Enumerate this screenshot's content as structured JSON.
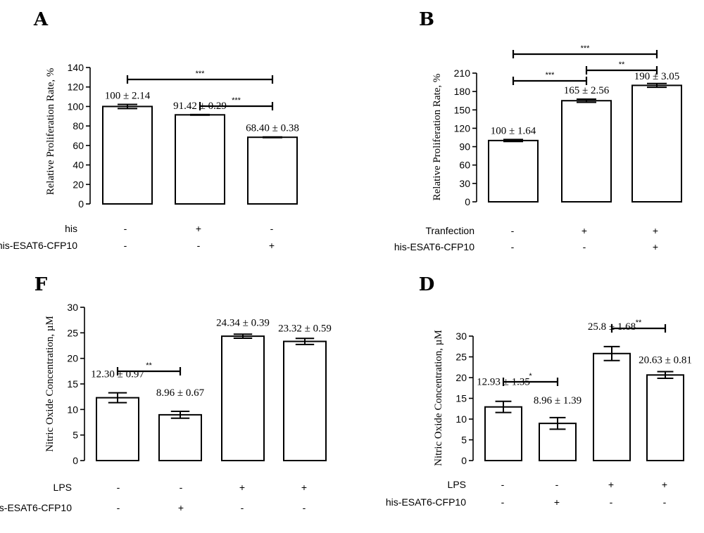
{
  "chart_data": [
    {
      "type": "bar",
      "panel": "A",
      "ylabel": "Relative Proliferation Rate, %",
      "ylim": [
        0,
        140
      ],
      "yticks": [
        0,
        20,
        40,
        60,
        80,
        100,
        120,
        140
      ],
      "values": [
        100,
        91.42,
        68.4
      ],
      "errors": [
        2.14,
        0.29,
        0.38
      ],
      "value_labels": [
        "100 ± 2.14",
        "91.42 ± 0.29",
        "68.40 ± 0.38"
      ],
      "conditions": [
        {
          "label": "his",
          "marks": [
            "-",
            "+",
            "-"
          ]
        },
        {
          "label": "his-ESAT6-CFP10",
          "marks": [
            "-",
            "-",
            "+"
          ]
        }
      ],
      "significance": [
        {
          "from": 0,
          "to": 2,
          "text": "***"
        },
        {
          "from": 1,
          "to": 2,
          "text": "***"
        }
      ]
    },
    {
      "type": "bar",
      "panel": "B",
      "ylabel": "Relative Proliferation Rate, %",
      "ylim": [
        0,
        210
      ],
      "yticks": [
        0,
        30,
        60,
        90,
        120,
        150,
        180,
        210
      ],
      "values": [
        100,
        165,
        190
      ],
      "errors": [
        1.64,
        2.56,
        3.05
      ],
      "value_labels": [
        "100 ± 1.64",
        "165 ± 2.56",
        "190 ± 3.05"
      ],
      "conditions": [
        {
          "label": "Tranfection",
          "marks": [
            "-",
            "+",
            "+"
          ]
        },
        {
          "label": "his-ESAT6-CFP10",
          "marks": [
            "-",
            "-",
            "+"
          ]
        }
      ],
      "significance": [
        {
          "from": 0,
          "to": 2,
          "text": "***"
        },
        {
          "from": 0,
          "to": 1,
          "text": "***"
        },
        {
          "from": 1,
          "to": 2,
          "text": "**"
        }
      ]
    },
    {
      "type": "bar",
      "panel": "F",
      "ylabel": "Nitric Oxide Concentration, µM",
      "ylim": [
        0,
        30
      ],
      "yticks": [
        0,
        5,
        10,
        15,
        20,
        25,
        30
      ],
      "values": [
        12.3,
        8.96,
        24.34,
        23.32
      ],
      "errors": [
        0.97,
        0.67,
        0.39,
        0.59
      ],
      "value_labels": [
        "12.30 ± 0.97",
        "8.96 ± 0.67",
        "24.34 ± 0.39",
        "23.32 ± 0.59"
      ],
      "conditions": [
        {
          "label": "LPS",
          "marks": [
            "-",
            "-",
            "+",
            "+"
          ]
        },
        {
          "label": "his-ESAT6-CFP10",
          "marks": [
            "-",
            "+",
            "-",
            "-"
          ]
        }
      ],
      "significance": [
        {
          "from": 0,
          "to": 1,
          "text": "**"
        }
      ]
    },
    {
      "type": "bar",
      "panel": "D",
      "ylabel": "Nitric Oxide Concentration, µM",
      "ylim": [
        0,
        30
      ],
      "yticks": [
        0,
        5,
        10,
        15,
        20,
        25,
        30
      ],
      "values": [
        12.93,
        8.96,
        25.8,
        20.63
      ],
      "errors": [
        1.35,
        1.39,
        1.68,
        0.81
      ],
      "value_labels": [
        "12.93 ± 1.35",
        "8.96 ± 1.39",
        "25.8 ± 1.68",
        "20.63 ± 0.81"
      ],
      "conditions": [
        {
          "label": "LPS",
          "marks": [
            "-",
            "-",
            "+",
            "+"
          ]
        },
        {
          "label": "his-ESAT6-CFP10",
          "marks": [
            "-",
            "+",
            "-",
            "-"
          ]
        }
      ],
      "significance": [
        {
          "from": 0,
          "to": 1,
          "text": "*"
        },
        {
          "from": 2,
          "to": 3,
          "text": "**"
        }
      ]
    }
  ]
}
